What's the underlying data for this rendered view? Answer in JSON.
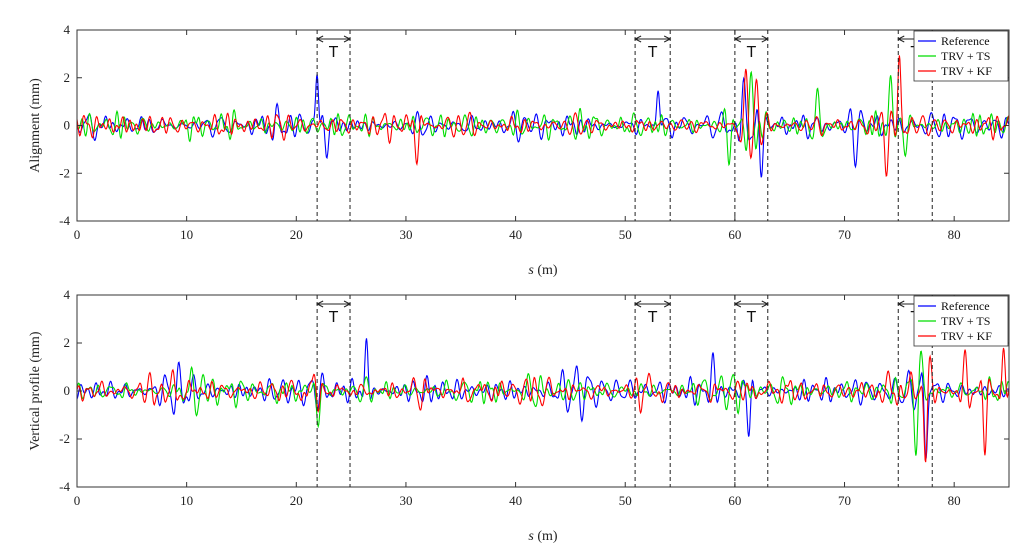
{
  "chart_data": [
    {
      "type": "line",
      "ylabel": "Alignment  (mm)",
      "xlabel": "s (m)",
      "xlim": [
        0,
        85
      ],
      "ylim": [
        -4,
        4
      ],
      "xticks": [
        0,
        10,
        20,
        30,
        40,
        50,
        60,
        70,
        80
      ],
      "yticks": [
        -4,
        -2,
        0,
        2,
        4
      ],
      "grid": false,
      "legend_position": "top-right",
      "series": [
        {
          "name": "Reference",
          "color": "#0000ff",
          "seed": 11,
          "base_amp": 0.55,
          "bursts": [
            [
              21.9,
              2.3,
              0.25
            ],
            [
              22.8,
              -1.2,
              0.4
            ],
            [
              53.0,
              1.9,
              0.3
            ],
            [
              62.4,
              -2.6,
              0.4
            ],
            [
              60.8,
              1.8,
              0.5
            ],
            [
              71.0,
              -2.0,
              0.5
            ]
          ]
        },
        {
          "name": "TRV + TS",
          "color": "#00dd00",
          "seed": 23,
          "base_amp": 0.55,
          "bursts": [
            [
              59.5,
              -1.6,
              0.4
            ],
            [
              61.5,
              2.0,
              0.5
            ],
            [
              67.5,
              1.6,
              0.5
            ],
            [
              74.2,
              2.4,
              0.4
            ],
            [
              75.5,
              -1.2,
              0.4
            ]
          ]
        },
        {
          "name": "TRV + KF",
          "color": "#ff0000",
          "seed": 37,
          "base_amp": 0.55,
          "bursts": [
            [
              61.0,
              2.2,
              0.5
            ],
            [
              62.0,
              1.9,
              0.4
            ],
            [
              73.8,
              -2.0,
              0.4
            ],
            [
              75.0,
              2.7,
              0.3
            ],
            [
              31.0,
              -1.6,
              0.4
            ]
          ]
        }
      ],
      "intervals": [
        {
          "start": 21.9,
          "end": 24.9,
          "label": "T"
        },
        {
          "start": 50.9,
          "end": 54.1,
          "label": "T"
        },
        {
          "start": 60.0,
          "end": 63.0,
          "label": "T"
        },
        {
          "start": 74.9,
          "end": 78.0,
          "label": "T"
        }
      ]
    },
    {
      "type": "line",
      "ylabel": "Vertical profile  (mm)",
      "xlabel": "s (m)",
      "xlim": [
        0,
        85
      ],
      "ylim": [
        -4,
        4
      ],
      "xticks": [
        0,
        10,
        20,
        30,
        40,
        50,
        60,
        70,
        80
      ],
      "yticks": [
        -4,
        -2,
        0,
        2,
        4
      ],
      "grid": false,
      "legend_position": "top-right",
      "series": [
        {
          "name": "Reference",
          "color": "#0000ff",
          "seed": 53,
          "base_amp": 0.65,
          "bursts": [
            [
              26.4,
              2.1,
              0.3
            ],
            [
              61.3,
              -1.8,
              0.3
            ],
            [
              77.4,
              -2.8,
              0.3
            ],
            [
              58.0,
              1.5,
              0.4
            ]
          ]
        },
        {
          "name": "TRV + TS",
          "color": "#00dd00",
          "seed": 67,
          "base_amp": 0.6,
          "bursts": [
            [
              22.0,
              -1.4,
              0.4
            ],
            [
              77.0,
              1.2,
              0.5
            ],
            [
              76.5,
              -2.2,
              0.4
            ]
          ]
        },
        {
          "name": "TRV + KF",
          "color": "#ff0000",
          "seed": 79,
          "base_amp": 0.6,
          "bursts": [
            [
              77.4,
              -2.7,
              0.3
            ],
            [
              77.8,
              1.5,
              0.5
            ],
            [
              81.0,
              1.8,
              0.5
            ],
            [
              82.8,
              -2.5,
              0.3
            ],
            [
              84.5,
              1.6,
              0.3
            ]
          ]
        }
      ],
      "intervals": [
        {
          "start": 21.9,
          "end": 24.9,
          "label": "T"
        },
        {
          "start": 50.9,
          "end": 54.1,
          "label": "T"
        },
        {
          "start": 60.0,
          "end": 63.0,
          "label": "T"
        },
        {
          "start": 74.9,
          "end": 78.0,
          "label": "T"
        }
      ]
    }
  ]
}
